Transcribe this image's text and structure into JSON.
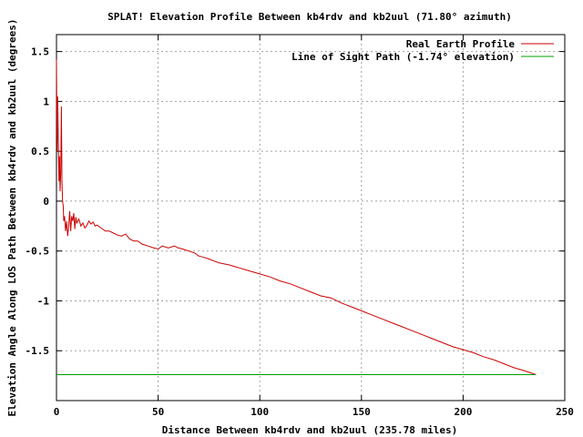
{
  "chart_data": {
    "type": "line",
    "title": "SPLAT! Elevation Profile Between kb4rdv and kb2uul (71.80° azimuth)",
    "xlabel": "Distance Between kb4rdv and kb2uul (235.78 miles)",
    "ylabel": "Elevation Angle Along LOS Path Between kb4rdv and kb2uul (degrees)",
    "xlim": [
      0,
      250
    ],
    "ylim": [
      -2.0,
      1.67
    ],
    "xticks": [
      0,
      50,
      100,
      150,
      200,
      250
    ],
    "yticks": [
      -1.5,
      -1,
      -0.5,
      0,
      0.5,
      1,
      1.5
    ],
    "xtick_labels": [
      "0",
      "50",
      "100",
      "150",
      "200",
      "250"
    ],
    "ytick_labels": [
      "-1.5",
      "-1",
      "-0.5",
      "0",
      "0.5",
      "1",
      "1.5"
    ],
    "grid": true,
    "legend_position": "top-right",
    "series": [
      {
        "name": "Real Earth Profile",
        "color": "#cc0000",
        "x": [
          0,
          0.3,
          0.6,
          0.9,
          1.2,
          1.5,
          1.8,
          2.1,
          2.4,
          2.7,
          3.0,
          3.3,
          3.6,
          4.0,
          4.5,
          5.0,
          5.5,
          6,
          6.5,
          7,
          7.5,
          8,
          8.5,
          9,
          9.5,
          10,
          11,
          12,
          13,
          14,
          15,
          16,
          17,
          18,
          19,
          20,
          22,
          24,
          26,
          28,
          30,
          32,
          34,
          36,
          38,
          40,
          42,
          45,
          48,
          50,
          52,
          55,
          58,
          60,
          62,
          65,
          68,
          70,
          72,
          75,
          80,
          85,
          90,
          95,
          100,
          105,
          110,
          115,
          120,
          125,
          130,
          135,
          140,
          145,
          150,
          155,
          160,
          165,
          170,
          175,
          180,
          185,
          190,
          195,
          200,
          205,
          210,
          215,
          220,
          225,
          230,
          235.78
        ],
        "y": [
          1.42,
          0.5,
          1.05,
          0.6,
          0.2,
          0.45,
          0.1,
          0.3,
          0.95,
          0.2,
          0.0,
          -0.05,
          -0.2,
          -0.15,
          -0.3,
          -0.2,
          -0.35,
          -0.25,
          -0.1,
          -0.3,
          -0.15,
          -0.2,
          -0.12,
          -0.28,
          -0.16,
          -0.22,
          -0.18,
          -0.25,
          -0.22,
          -0.27,
          -0.24,
          -0.2,
          -0.23,
          -0.21,
          -0.25,
          -0.24,
          -0.27,
          -0.3,
          -0.3,
          -0.32,
          -0.34,
          -0.35,
          -0.33,
          -0.38,
          -0.4,
          -0.4,
          -0.43,
          -0.45,
          -0.47,
          -0.48,
          -0.45,
          -0.47,
          -0.45,
          -0.47,
          -0.48,
          -0.5,
          -0.52,
          -0.55,
          -0.56,
          -0.58,
          -0.62,
          -0.64,
          -0.67,
          -0.7,
          -0.73,
          -0.76,
          -0.8,
          -0.83,
          -0.87,
          -0.91,
          -0.95,
          -0.97,
          -1.02,
          -1.06,
          -1.1,
          -1.14,
          -1.18,
          -1.22,
          -1.26,
          -1.3,
          -1.34,
          -1.38,
          -1.42,
          -1.46,
          -1.49,
          -1.52,
          -1.56,
          -1.59,
          -1.63,
          -1.67,
          -1.7,
          -1.74
        ]
      },
      {
        "name": "Line of Sight Path (-1.74° elevation)",
        "color": "#00a000",
        "x": [
          0,
          235.78
        ],
        "y": [
          -1.74,
          -1.74
        ]
      }
    ]
  }
}
